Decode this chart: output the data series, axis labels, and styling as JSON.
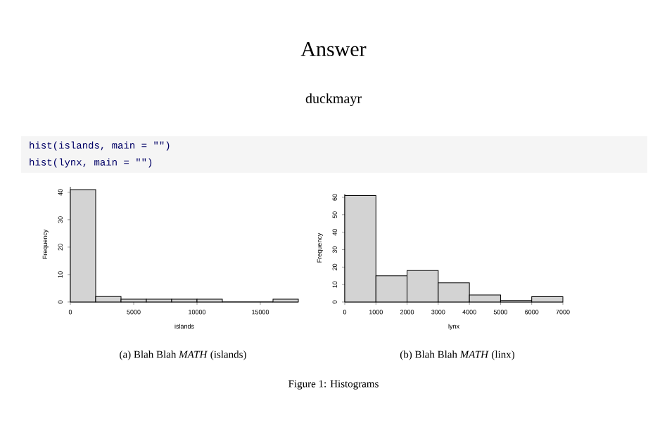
{
  "chart_data": [
    {
      "type": "histogram",
      "annotations": [
        "(a) Blah Blah *MATH* (islands)"
      ],
      "bins": [
        0,
        2000,
        4000,
        6000,
        8000,
        10000,
        12000,
        14000,
        16000,
        18000
      ],
      "values": [
        41,
        2,
        1,
        1,
        1,
        1,
        0,
        0,
        1
      ],
      "color": "#d3d3d3",
      "xlabel": "islands",
      "ylabel": "Frequency",
      "xlim": [
        0,
        18000
      ],
      "ylim": [
        0,
        42
      ],
      "xticks": [
        0,
        5000,
        10000,
        15000
      ],
      "yticks": [
        0,
        10,
        20,
        30,
        40
      ]
    },
    {
      "type": "histogram",
      "annotations": [
        "(b) Blah Blah *MATH* (linx)"
      ],
      "bins": [
        0,
        1000,
        2000,
        3000,
        4000,
        5000,
        6000,
        7000
      ],
      "values": [
        61,
        15,
        18,
        11,
        4,
        1,
        3
      ],
      "color": "#d3d3d3",
      "xlabel": "lynx",
      "ylabel": "Frequency",
      "xlim": [
        0,
        7000
      ],
      "ylim": [
        0,
        62
      ],
      "xticks": [
        0,
        1000,
        2000,
        3000,
        4000,
        5000,
        6000,
        7000
      ],
      "yticks": [
        0,
        10,
        20,
        30,
        40,
        50,
        60
      ]
    },
    {
      "type": "other",
      "title": "Answer",
      "subtitle": "duckmayr",
      "annotations": [
        "hist(islands, main = \"\")",
        "hist(lynx, main = \"\")",
        "Figure 1: Histograms"
      ]
    }
  ]
}
